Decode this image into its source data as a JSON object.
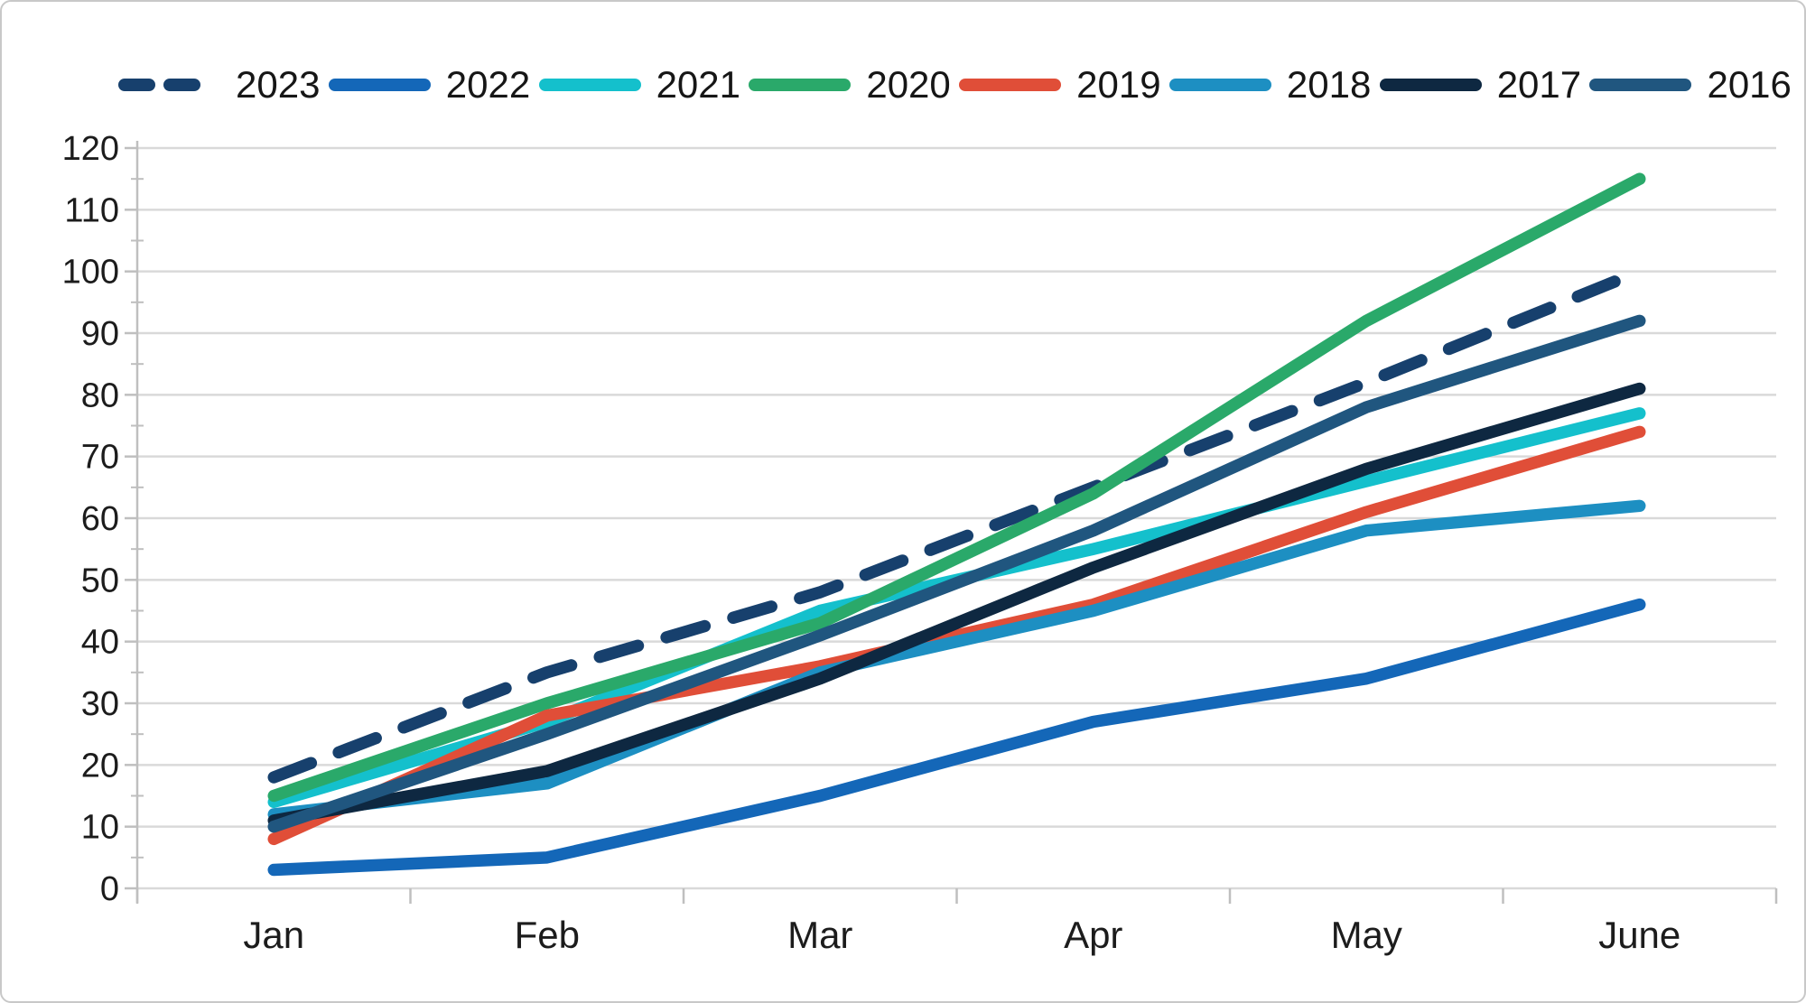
{
  "frame": {
    "background": "#ffffff",
    "border_color": "#c8c8c8"
  },
  "legend": {
    "position": "top"
  },
  "axes": {
    "y_ticks": [
      0,
      10,
      20,
      30,
      40,
      50,
      60,
      70,
      80,
      90,
      100,
      110,
      120
    ],
    "gridline_color": "#d9d9d9",
    "axis_tick_color": "#bfbfbf",
    "tick_label_color": "#1c1c1c"
  },
  "chart_data": {
    "type": "line",
    "title": "",
    "xlabel": "",
    "ylabel": "",
    "categories": [
      "Jan",
      "Feb",
      "Mar",
      "Apr",
      "May",
      "June"
    ],
    "series": [
      {
        "name": "2023",
        "color": "#17406d",
        "dashed": true,
        "values": [
          18,
          35,
          48,
          65,
          82,
          100
        ]
      },
      {
        "name": "2022",
        "color": "#1467b8",
        "dashed": false,
        "values": [
          3,
          5,
          15,
          27,
          34,
          46
        ]
      },
      {
        "name": "2021",
        "color": "#14c0cc",
        "dashed": false,
        "values": [
          14,
          27,
          45,
          55,
          66,
          77
        ]
      },
      {
        "name": "2020",
        "color": "#2aa96a",
        "dashed": false,
        "values": [
          15,
          30,
          43,
          64,
          92,
          115
        ]
      },
      {
        "name": "2019",
        "color": "#e04e38",
        "dashed": false,
        "values": [
          8,
          28,
          36,
          46,
          61,
          74
        ]
      },
      {
        "name": "2018",
        "color": "#1d8fc2",
        "dashed": false,
        "values": [
          12,
          17,
          35,
          45,
          58,
          62
        ]
      },
      {
        "name": "2017",
        "color": "#0e2841",
        "dashed": false,
        "values": [
          11,
          19,
          34,
          52,
          68,
          81
        ]
      },
      {
        "name": "2016",
        "color": "#20567f",
        "dashed": false,
        "values": [
          10,
          25,
          41,
          58,
          78,
          92
        ]
      }
    ],
    "ylim": [
      0,
      120
    ],
    "ytick_step": 10,
    "grid": true,
    "legend_position": "top"
  }
}
